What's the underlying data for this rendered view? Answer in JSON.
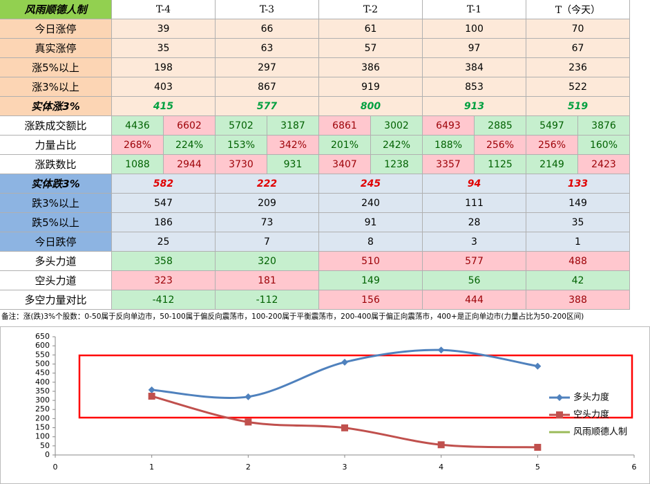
{
  "table": {
    "header": [
      "风雨顺德人制",
      "T-4",
      "T-3",
      "T-2",
      "T-1",
      "T（今天）"
    ],
    "rows": [
      {
        "label": "今日涨停",
        "values": [
          39,
          66,
          61,
          100,
          70
        ],
        "tone": "peach",
        "label_tone": "peach-dark"
      },
      {
        "label": "真实涨停",
        "values": [
          35,
          63,
          57,
          97,
          67
        ],
        "tone": "peach",
        "label_tone": "peach-dark"
      },
      {
        "label": "涨5%以上",
        "values": [
          198,
          297,
          386,
          384,
          236
        ],
        "tone": "peach",
        "label_tone": "peach-dark"
      },
      {
        "label": "涨3%以上",
        "values": [
          403,
          867,
          919,
          853,
          522
        ],
        "tone": "peach",
        "label_tone": "peach-dark"
      },
      {
        "label": "实体涨3%",
        "values": [
          415,
          577,
          800,
          913,
          519
        ],
        "tone": "peach",
        "label_tone": "peach-dark",
        "bold_italic": true,
        "text_color": "#00a040"
      },
      {
        "label": "涨跌成交额比",
        "values": [
          [
            4436,
            6602
          ],
          [
            5702,
            3187
          ],
          [
            6861,
            3002
          ],
          [
            6493,
            2885
          ],
          [
            5497,
            3876
          ]
        ],
        "tones": [
          [
            "g",
            "r"
          ],
          [
            "g",
            "g"
          ],
          [
            "r",
            "g"
          ],
          [
            "r",
            "g"
          ],
          [
            "g",
            "g"
          ]
        ],
        "label_tone": "white"
      },
      {
        "label": "力量占比",
        "values": [
          [
            "268%",
            "224%"
          ],
          [
            "153%",
            "342%"
          ],
          [
            "201%",
            "242%"
          ],
          [
            "188%",
            "256%"
          ],
          [
            "256%",
            "160%"
          ]
        ],
        "tones": [
          [
            "r",
            "g"
          ],
          [
            "g",
            "r"
          ],
          [
            "g",
            "g"
          ],
          [
            "g",
            "r"
          ],
          [
            "r",
            "g"
          ]
        ],
        "label_tone": "white"
      },
      {
        "label": "涨跌数比",
        "values": [
          [
            1088,
            2944
          ],
          [
            3730,
            931
          ],
          [
            3407,
            1238
          ],
          [
            3357,
            1125
          ],
          [
            2149,
            2423
          ]
        ],
        "tones": [
          [
            "g",
            "r"
          ],
          [
            "r",
            "g"
          ],
          [
            "r",
            "g"
          ],
          [
            "r",
            "g"
          ],
          [
            "g",
            "r"
          ]
        ],
        "label_tone": "white"
      },
      {
        "label": "实体跌3%",
        "values": [
          582,
          222,
          245,
          94,
          133
        ],
        "tone": "blue",
        "label_tone": "blue-dark",
        "bold_italic": true,
        "text_color": "#e00000"
      },
      {
        "label": "跌3%以上",
        "values": [
          547,
          209,
          240,
          111,
          149
        ],
        "tone": "blue",
        "label_tone": "blue-dark"
      },
      {
        "label": "跌5%以上",
        "values": [
          186,
          73,
          91,
          28,
          35
        ],
        "tone": "blue",
        "label_tone": "blue-dark"
      },
      {
        "label": "今日跌停",
        "values": [
          25,
          7,
          8,
          3,
          1
        ],
        "tone": "blue",
        "label_tone": "blue-dark"
      },
      {
        "label": "多头力道",
        "values": [
          358,
          320,
          510,
          577,
          488
        ],
        "tones": [
          "g",
          "g",
          "r",
          "r",
          "r"
        ],
        "label_tone": "white"
      },
      {
        "label": "空头力道",
        "values": [
          323,
          181,
          149,
          56,
          42
        ],
        "tones": [
          "r",
          "r",
          "g",
          "g",
          "g"
        ],
        "label_tone": "white"
      },
      {
        "label": "多空力量对比",
        "values": [
          -412,
          -112,
          156,
          444,
          388
        ],
        "tones": [
          "g",
          "g",
          "r",
          "r",
          "r"
        ],
        "label_tone": "white"
      }
    ],
    "note": "备注：涨(跌)3%个股数：0-50属于反向单边市，50-100属于偏反向震荡市，100-200属于平衡震荡市，200-400属于偏正向震荡市，400+是正向单边市(力量占比为50-200区间)"
  },
  "chart_data": {
    "type": "line",
    "x": [
      1,
      2,
      3,
      4,
      5
    ],
    "series": [
      {
        "name": "多头力度",
        "color": "#4f81bd",
        "marker": "diamond",
        "values": [
          358,
          320,
          510,
          577,
          488
        ]
      },
      {
        "name": "空头力度",
        "color": "#c0504d",
        "marker": "square",
        "values": [
          323,
          181,
          149,
          56,
          42
        ]
      },
      {
        "name": "风雨顺德人制",
        "color": "#9bbb59",
        "marker": "none",
        "values": [
          null,
          null,
          null,
          null,
          null
        ]
      }
    ],
    "xlim": [
      0,
      6
    ],
    "xticks": [
      0,
      1,
      2,
      3,
      4,
      5,
      6
    ],
    "ylim": [
      0,
      650
    ],
    "yticks": [
      0,
      50,
      100,
      150,
      200,
      250,
      300,
      350,
      400,
      450,
      500,
      550,
      600,
      650
    ],
    "grid": false,
    "smooth": true,
    "legend": "right"
  }
}
